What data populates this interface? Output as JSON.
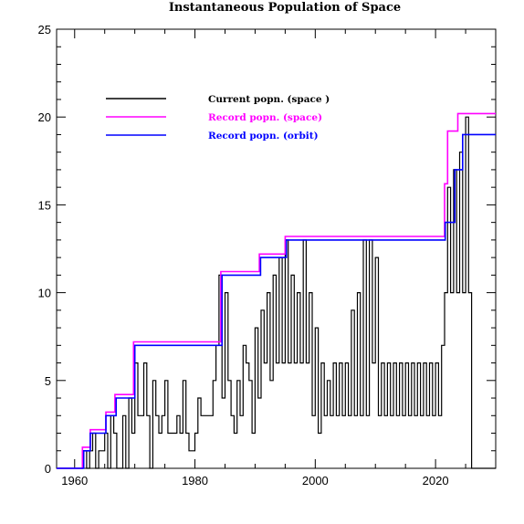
{
  "chart_data": {
    "type": "line",
    "title": "Instantaneous Population of Space",
    "xlabel": "",
    "ylabel": "",
    "xlim": [
      1957,
      2030
    ],
    "ylim": [
      0,
      25
    ],
    "x_ticks": [
      1960,
      1980,
      2000,
      2020
    ],
    "y_ticks": [
      0,
      5,
      10,
      15,
      20,
      25
    ],
    "grid": false,
    "legend_position": "top-left",
    "series": [
      {
        "name": "Current popn. (space )",
        "color": "#000000",
        "style": "dense-step",
        "points": [
          [
            1957,
            0
          ],
          [
            1961,
            0
          ],
          [
            1961.3,
            1
          ],
          [
            1962,
            0
          ],
          [
            1962.5,
            1
          ],
          [
            1963,
            2
          ],
          [
            1963.5,
            0
          ],
          [
            1964,
            1
          ],
          [
            1965,
            2
          ],
          [
            1965.5,
            0
          ],
          [
            1966,
            3
          ],
          [
            1966.5,
            2
          ],
          [
            1967,
            0
          ],
          [
            1968,
            3
          ],
          [
            1968.5,
            0
          ],
          [
            1969,
            4
          ],
          [
            1969.5,
            2
          ],
          [
            1970,
            6
          ],
          [
            1970.5,
            3
          ],
          [
            1971,
            3
          ],
          [
            1971.5,
            6
          ],
          [
            1972,
            3
          ],
          [
            1972.5,
            0
          ],
          [
            1973,
            5
          ],
          [
            1973.5,
            3
          ],
          [
            1974,
            2
          ],
          [
            1974.5,
            3
          ],
          [
            1975,
            5
          ],
          [
            1975.5,
            2
          ],
          [
            1976,
            2
          ],
          [
            1977,
            3
          ],
          [
            1977.5,
            2
          ],
          [
            1978,
            5
          ],
          [
            1978.5,
            2
          ],
          [
            1979,
            1
          ],
          [
            1980,
            2
          ],
          [
            1980.5,
            4
          ],
          [
            1981,
            3
          ],
          [
            1982,
            3
          ],
          [
            1983,
            5
          ],
          [
            1983.5,
            7
          ],
          [
            1984,
            11
          ],
          [
            1984.5,
            4
          ],
          [
            1985,
            10
          ],
          [
            1985.5,
            5
          ],
          [
            1986,
            3
          ],
          [
            1986.5,
            2
          ],
          [
            1987,
            5
          ],
          [
            1987.5,
            3
          ],
          [
            1988,
            7
          ],
          [
            1988.5,
            6
          ],
          [
            1989,
            5
          ],
          [
            1989.5,
            2
          ],
          [
            1990,
            8
          ],
          [
            1990.5,
            4
          ],
          [
            1991,
            9
          ],
          [
            1991.5,
            6
          ],
          [
            1992,
            10
          ],
          [
            1992.5,
            5
          ],
          [
            1993,
            11
          ],
          [
            1993.5,
            6
          ],
          [
            1994,
            12
          ],
          [
            1994.5,
            6
          ],
          [
            1995,
            13
          ],
          [
            1995.5,
            6
          ],
          [
            1996,
            11
          ],
          [
            1996.5,
            6
          ],
          [
            1997,
            10
          ],
          [
            1997.5,
            6
          ],
          [
            1998,
            13
          ],
          [
            1998.5,
            6
          ],
          [
            1999,
            10
          ],
          [
            1999.5,
            3
          ],
          [
            2000,
            8
          ],
          [
            2000.5,
            2
          ],
          [
            2001,
            6
          ],
          [
            2001.5,
            3
          ],
          [
            2002,
            5
          ],
          [
            2002.5,
            3
          ],
          [
            2003,
            6
          ],
          [
            2003.5,
            3
          ],
          [
            2004,
            6
          ],
          [
            2004.5,
            3
          ],
          [
            2005,
            6
          ],
          [
            2005.5,
            3
          ],
          [
            2006,
            9
          ],
          [
            2006.5,
            3
          ],
          [
            2007,
            10
          ],
          [
            2007.5,
            3
          ],
          [
            2008,
            13
          ],
          [
            2008.5,
            3
          ],
          [
            2009,
            13
          ],
          [
            2009.5,
            6
          ],
          [
            2010,
            12
          ],
          [
            2010.5,
            3
          ],
          [
            2011,
            6
          ],
          [
            2011.5,
            3
          ],
          [
            2012,
            6
          ],
          [
            2012.5,
            3
          ],
          [
            2013,
            6
          ],
          [
            2013.5,
            3
          ],
          [
            2014,
            6
          ],
          [
            2014.5,
            3
          ],
          [
            2015,
            6
          ],
          [
            2015.5,
            3
          ],
          [
            2016,
            6
          ],
          [
            2016.5,
            3
          ],
          [
            2017,
            6
          ],
          [
            2017.5,
            3
          ],
          [
            2018,
            6
          ],
          [
            2018.5,
            3
          ],
          [
            2019,
            6
          ],
          [
            2019.5,
            3
          ],
          [
            2020,
            6
          ],
          [
            2020.5,
            3
          ],
          [
            2021,
            7
          ],
          [
            2021.5,
            10
          ],
          [
            2022,
            16
          ],
          [
            2022.5,
            10
          ],
          [
            2023,
            17
          ],
          [
            2023.5,
            10
          ],
          [
            2024,
            18
          ],
          [
            2024.5,
            10
          ],
          [
            2025,
            20
          ],
          [
            2025.5,
            10
          ],
          [
            2026,
            0
          ],
          [
            2030,
            0
          ]
        ]
      },
      {
        "name": "Record popn. (space)",
        "color": "#ff00ff",
        "style": "step",
        "points": [
          [
            1957,
            0
          ],
          [
            1961.3,
            0
          ],
          [
            1961.3,
            1.2
          ],
          [
            1962.6,
            1.2
          ],
          [
            1962.6,
            2.2
          ],
          [
            1965.2,
            2.2
          ],
          [
            1965.2,
            3.2
          ],
          [
            1966.7,
            3.2
          ],
          [
            1966.7,
            4.2
          ],
          [
            1969.8,
            4.2
          ],
          [
            1969.8,
            7.2
          ],
          [
            1984.3,
            7.2
          ],
          [
            1984.3,
            11.2
          ],
          [
            1990.7,
            11.2
          ],
          [
            1990.7,
            12.2
          ],
          [
            1995.0,
            12.2
          ],
          [
            1995.0,
            13.2
          ],
          [
            2021.5,
            13.2
          ],
          [
            2021.5,
            16.2
          ],
          [
            2022.0,
            16.2
          ],
          [
            2022.0,
            19.2
          ],
          [
            2023.7,
            19.2
          ],
          [
            2023.7,
            20.2
          ],
          [
            2030,
            20.2
          ]
        ]
      },
      {
        "name": "Record popn. (orbit)",
        "color": "#0000ff",
        "style": "step",
        "points": [
          [
            1957,
            0
          ],
          [
            1961.5,
            0
          ],
          [
            1961.5,
            1
          ],
          [
            1962.6,
            1
          ],
          [
            1962.6,
            2
          ],
          [
            1965.2,
            2
          ],
          [
            1965.2,
            3
          ],
          [
            1966.9,
            3
          ],
          [
            1966.9,
            4
          ],
          [
            1970.0,
            4
          ],
          [
            1970.0,
            7
          ],
          [
            1984.5,
            7
          ],
          [
            1984.5,
            11
          ],
          [
            1990.9,
            11
          ],
          [
            1990.9,
            12
          ],
          [
            1995.2,
            12
          ],
          [
            1995.2,
            13
          ],
          [
            2021.6,
            13
          ],
          [
            2021.6,
            14
          ],
          [
            2023.2,
            14
          ],
          [
            2023.2,
            17
          ],
          [
            2024.5,
            17
          ],
          [
            2024.5,
            19
          ],
          [
            2030,
            19
          ]
        ]
      }
    ]
  }
}
